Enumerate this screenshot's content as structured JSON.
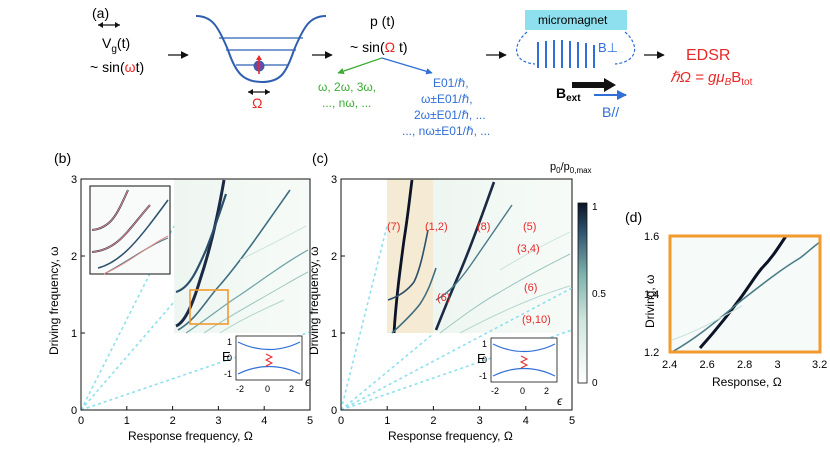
{
  "panel_a": {
    "label": "(a)",
    "vg": "V",
    "vg_sub": "g",
    "vg_t": "(t)",
    "vg_sin_prefix": "~ sin(",
    "vg_sin_omega": "ω",
    "vg_sin_suffix": "t)",
    "dot_omega_label": "Ω",
    "pt_title": "p (t)",
    "pt_sin_prefix": "~ sin(",
    "pt_sin_omega": "Ω",
    "pt_sin_suffix": " t)",
    "green_lines": [
      "ω, 2ω, 3ω,",
      "..., nω, ..."
    ],
    "blue_lines": [
      "E01/ℏ,",
      "ω±E01/ℏ,",
      "2ω±E01/ℏ, ...",
      "..., nω±E01/ℏ, ..."
    ],
    "micromagnet_label": "micromagnet",
    "b_perp": "B⊥",
    "b_ext": "B",
    "b_ext_sub": "ext",
    "b_par": "B//",
    "edsr_title": "EDSR",
    "edsr_formula": "ℏΩ = gμ",
    "edsr_formula_sub": "B",
    "edsr_formula_tail": "B",
    "edsr_formula_tail_sub": "tot",
    "colors": {
      "red": "#e8292a",
      "green": "#3bab35",
      "blue": "#2f6fd6",
      "cyan": "#8ee0ee",
      "orange": "#f39a2e"
    }
  },
  "panel_b": {
    "label": "(b)",
    "xlabel": "Response frequency, Ω",
    "ylabel": "Driving frequency, ω",
    "xticks": [
      "0",
      "1",
      "2",
      "3",
      "4",
      "5"
    ],
    "yticks": [
      "0",
      "1",
      "2",
      "3"
    ],
    "inset": {
      "ylabel": "E",
      "xlabel": "ϵ",
      "yticks": [
        "1",
        "0",
        "-1"
      ],
      "xticks": [
        "-2",
        "0",
        "2"
      ]
    }
  },
  "panel_c": {
    "label": "(c)",
    "xlabel": "Response frequency, Ω",
    "ylabel": "Driving frequency, ω",
    "xticks": [
      "0",
      "1",
      "2",
      "3",
      "4",
      "5"
    ],
    "yticks": [
      "0",
      "1",
      "2",
      "3"
    ],
    "annotations": [
      "(7)",
      "(1,2)",
      "(8)",
      "(5)",
      "(3,4)",
      "(6)",
      "(6)",
      "(9,10)"
    ],
    "inset": {
      "ylabel": "E",
      "xlabel": "ϵ",
      "yticks": [
        "1",
        "0",
        "-1"
      ],
      "xticks": [
        "-2",
        "0",
        "2"
      ]
    },
    "colorbar": {
      "title": "p",
      "title_sub": "0",
      "title_mid": "/p",
      "title_sub2": "0,max",
      "ticks": [
        "1",
        "0.5",
        "0"
      ]
    }
  },
  "panel_d": {
    "label": "(d)",
    "xlabel": "Response, Ω",
    "ylabel": "Driving, ω",
    "xticks": [
      "2.4",
      "2.6",
      "2.8",
      "3",
      "3.2"
    ],
    "yticks": [
      "1.6",
      "1.4",
      "1.2"
    ]
  }
}
